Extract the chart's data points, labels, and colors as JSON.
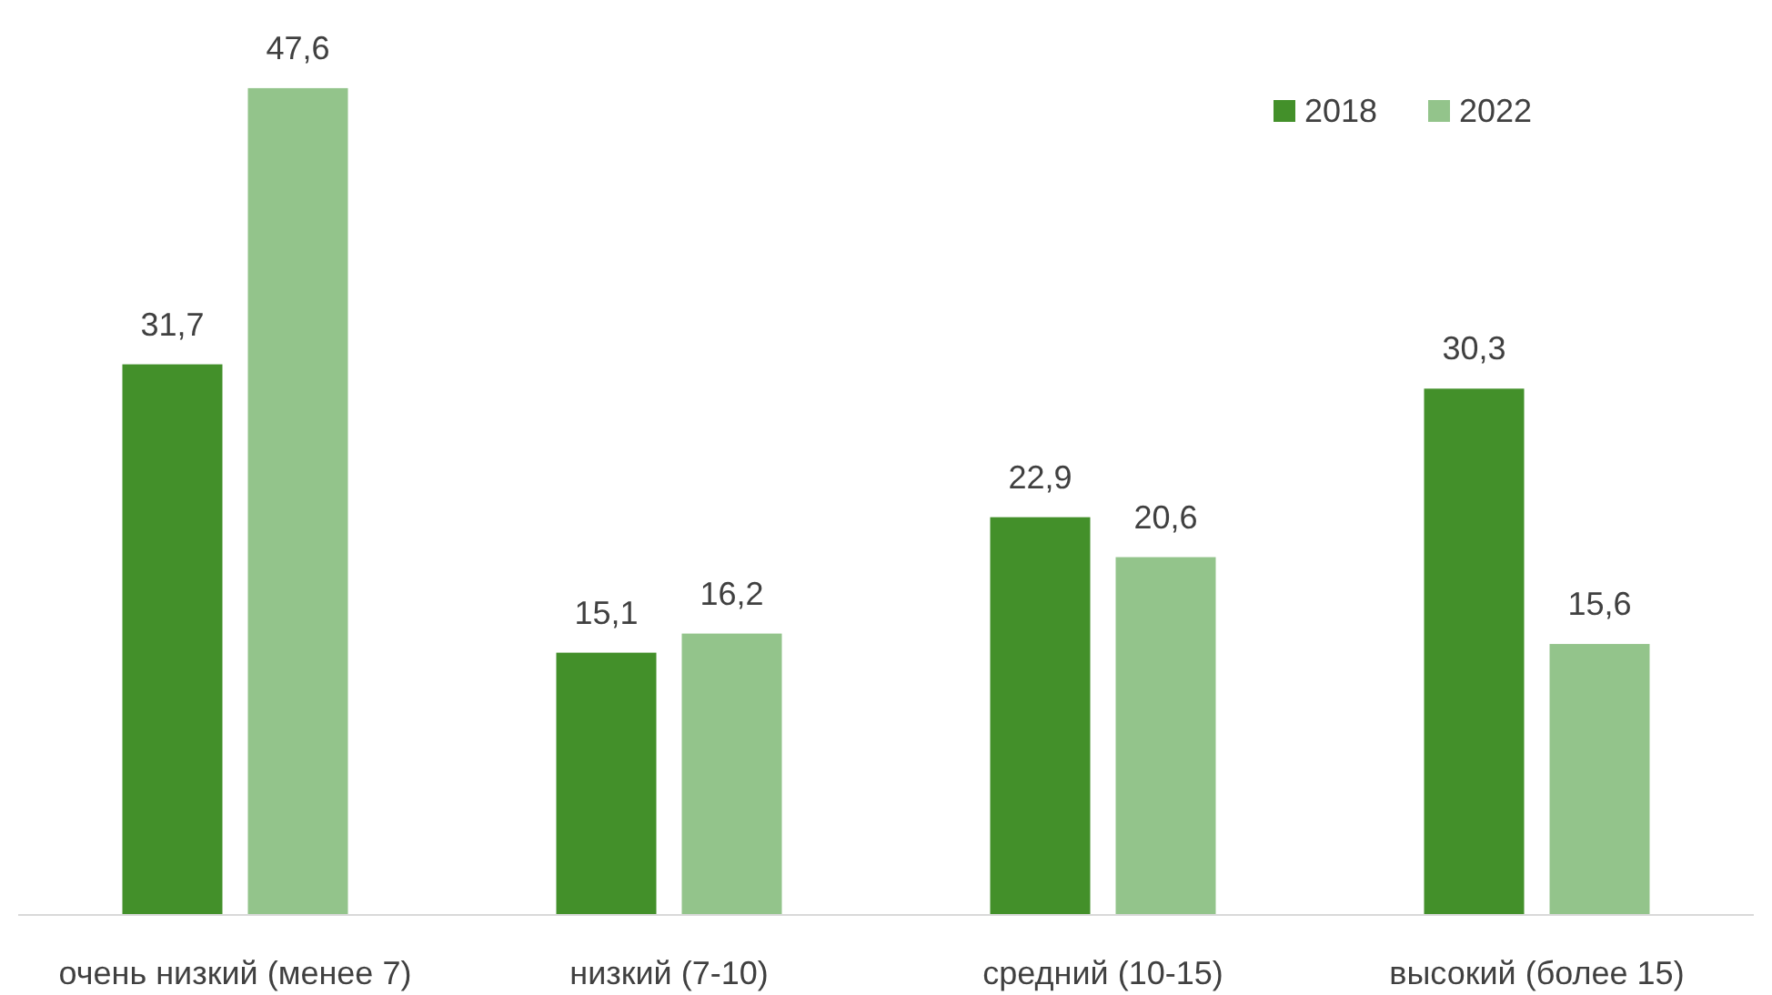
{
  "chart_data": {
    "type": "bar",
    "categories": [
      "очень низкий (менее 7)",
      "низкий (7-10)",
      "средний (10-15)",
      "высокий (более 15)"
    ],
    "series": [
      {
        "name": "2018",
        "color": "#43902a",
        "values": [
          31.7,
          15.1,
          22.9,
          30.3
        ],
        "value_labels": [
          "31,7",
          "15,1",
          "22,9",
          "30,3"
        ]
      },
      {
        "name": "2022",
        "color": "#93c48b",
        "values": [
          47.6,
          16.2,
          20.6,
          15.6
        ],
        "value_labels": [
          "47,6",
          "16,2",
          "20,6",
          "15,6"
        ]
      }
    ],
    "legend": "top right",
    "grid": false
  }
}
